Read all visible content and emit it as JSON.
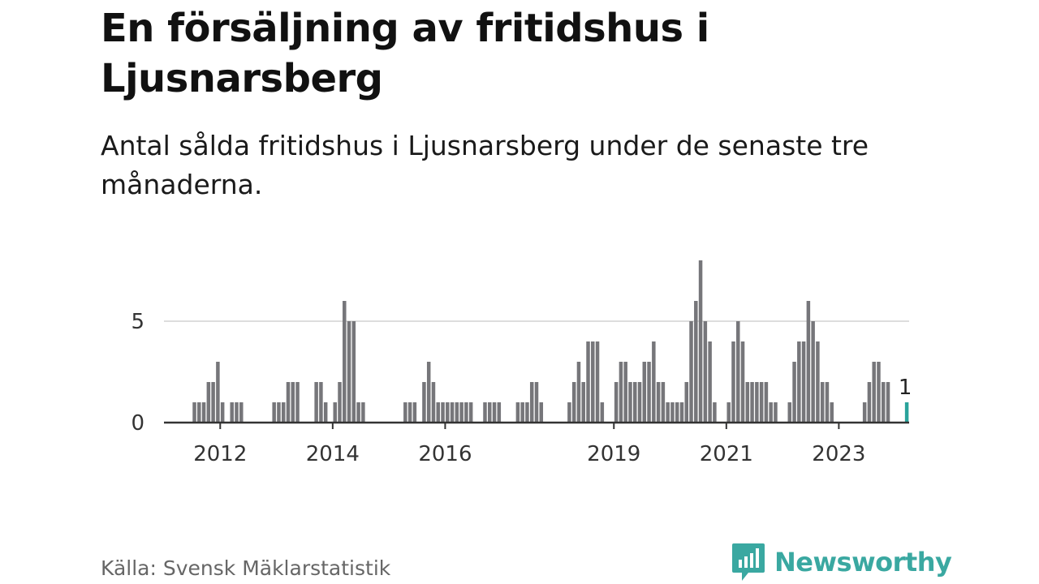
{
  "header": {
    "title": "En försäljning av fritidshus i Ljusnarsberg",
    "subtitle": "Antal sålda fritidshus i Ljusnarsberg under de senaste tre månaderna."
  },
  "footer": {
    "source": "Källa: Svensk Mäklarstatistik",
    "brand": "Newsworthy",
    "brand_icon": "bar-chart-logo-icon"
  },
  "colors": {
    "bar": "#76767a",
    "highlight": "#2aa39b",
    "gridline": "#dddddd",
    "axis": "#333333",
    "brand": "#3aa8a1"
  },
  "chart_data": {
    "type": "bar",
    "x_start": "2011-01",
    "x_end": "2024-03",
    "yticks": [
      0,
      5
    ],
    "xticks": [
      "2012",
      "2014",
      "2016",
      "2019",
      "2021",
      "2023"
    ],
    "highlight": {
      "x": "2024-03",
      "value": 1,
      "label": "1"
    },
    "grid": true,
    "data": [
      [
        "2011-07",
        1
      ],
      [
        "2011-08",
        1
      ],
      [
        "2011-09",
        1
      ],
      [
        "2011-10",
        2
      ],
      [
        "2011-11",
        2
      ],
      [
        "2011-12",
        3
      ],
      [
        "2012-01",
        1
      ],
      [
        "2012-03",
        1
      ],
      [
        "2012-04",
        1
      ],
      [
        "2012-05",
        1
      ],
      [
        "2012-12",
        1
      ],
      [
        "2013-01",
        1
      ],
      [
        "2013-02",
        1
      ],
      [
        "2013-03",
        2
      ],
      [
        "2013-04",
        2
      ],
      [
        "2013-05",
        2
      ],
      [
        "2013-09",
        2
      ],
      [
        "2013-10",
        2
      ],
      [
        "2013-11",
        1
      ],
      [
        "2014-01",
        1
      ],
      [
        "2014-02",
        2
      ],
      [
        "2014-03",
        6
      ],
      [
        "2014-04",
        5
      ],
      [
        "2014-05",
        5
      ],
      [
        "2014-06",
        1
      ],
      [
        "2014-07",
        1
      ],
      [
        "2015-04",
        1
      ],
      [
        "2015-05",
        1
      ],
      [
        "2015-06",
        1
      ],
      [
        "2015-08",
        2
      ],
      [
        "2015-09",
        3
      ],
      [
        "2015-10",
        2
      ],
      [
        "2015-11",
        1
      ],
      [
        "2015-12",
        1
      ],
      [
        "2016-01",
        1
      ],
      [
        "2016-02",
        1
      ],
      [
        "2016-03",
        1
      ],
      [
        "2016-04",
        1
      ],
      [
        "2016-05",
        1
      ],
      [
        "2016-06",
        1
      ],
      [
        "2016-09",
        1
      ],
      [
        "2016-10",
        1
      ],
      [
        "2016-11",
        1
      ],
      [
        "2016-12",
        1
      ],
      [
        "2017-04",
        1
      ],
      [
        "2017-05",
        1
      ],
      [
        "2017-06",
        1
      ],
      [
        "2017-07",
        2
      ],
      [
        "2017-08",
        2
      ],
      [
        "2017-09",
        1
      ],
      [
        "2018-03",
        1
      ],
      [
        "2018-04",
        2
      ],
      [
        "2018-05",
        3
      ],
      [
        "2018-06",
        2
      ],
      [
        "2018-07",
        4
      ],
      [
        "2018-08",
        4
      ],
      [
        "2018-09",
        4
      ],
      [
        "2018-10",
        1
      ],
      [
        "2019-01",
        2
      ],
      [
        "2019-02",
        3
      ],
      [
        "2019-03",
        3
      ],
      [
        "2019-04",
        2
      ],
      [
        "2019-05",
        2
      ],
      [
        "2019-06",
        2
      ],
      [
        "2019-07",
        3
      ],
      [
        "2019-08",
        3
      ],
      [
        "2019-09",
        4
      ],
      [
        "2019-10",
        2
      ],
      [
        "2019-11",
        2
      ],
      [
        "2019-12",
        1
      ],
      [
        "2020-01",
        1
      ],
      [
        "2020-02",
        1
      ],
      [
        "2020-03",
        1
      ],
      [
        "2020-04",
        2
      ],
      [
        "2020-05",
        5
      ],
      [
        "2020-06",
        6
      ],
      [
        "2020-07",
        8
      ],
      [
        "2020-08",
        5
      ],
      [
        "2020-09",
        4
      ],
      [
        "2020-10",
        1
      ],
      [
        "2021-01",
        1
      ],
      [
        "2021-02",
        4
      ],
      [
        "2021-03",
        5
      ],
      [
        "2021-04",
        4
      ],
      [
        "2021-05",
        2
      ],
      [
        "2021-06",
        2
      ],
      [
        "2021-07",
        2
      ],
      [
        "2021-08",
        2
      ],
      [
        "2021-09",
        2
      ],
      [
        "2021-10",
        1
      ],
      [
        "2021-11",
        1
      ],
      [
        "2022-02",
        1
      ],
      [
        "2022-03",
        3
      ],
      [
        "2022-04",
        4
      ],
      [
        "2022-05",
        4
      ],
      [
        "2022-06",
        6
      ],
      [
        "2022-07",
        5
      ],
      [
        "2022-08",
        4
      ],
      [
        "2022-09",
        2
      ],
      [
        "2022-10",
        2
      ],
      [
        "2022-11",
        1
      ],
      [
        "2023-06",
        1
      ],
      [
        "2023-07",
        2
      ],
      [
        "2023-08",
        3
      ],
      [
        "2023-09",
        3
      ],
      [
        "2023-10",
        2
      ],
      [
        "2023-11",
        2
      ],
      [
        "2024-03",
        1
      ]
    ]
  }
}
